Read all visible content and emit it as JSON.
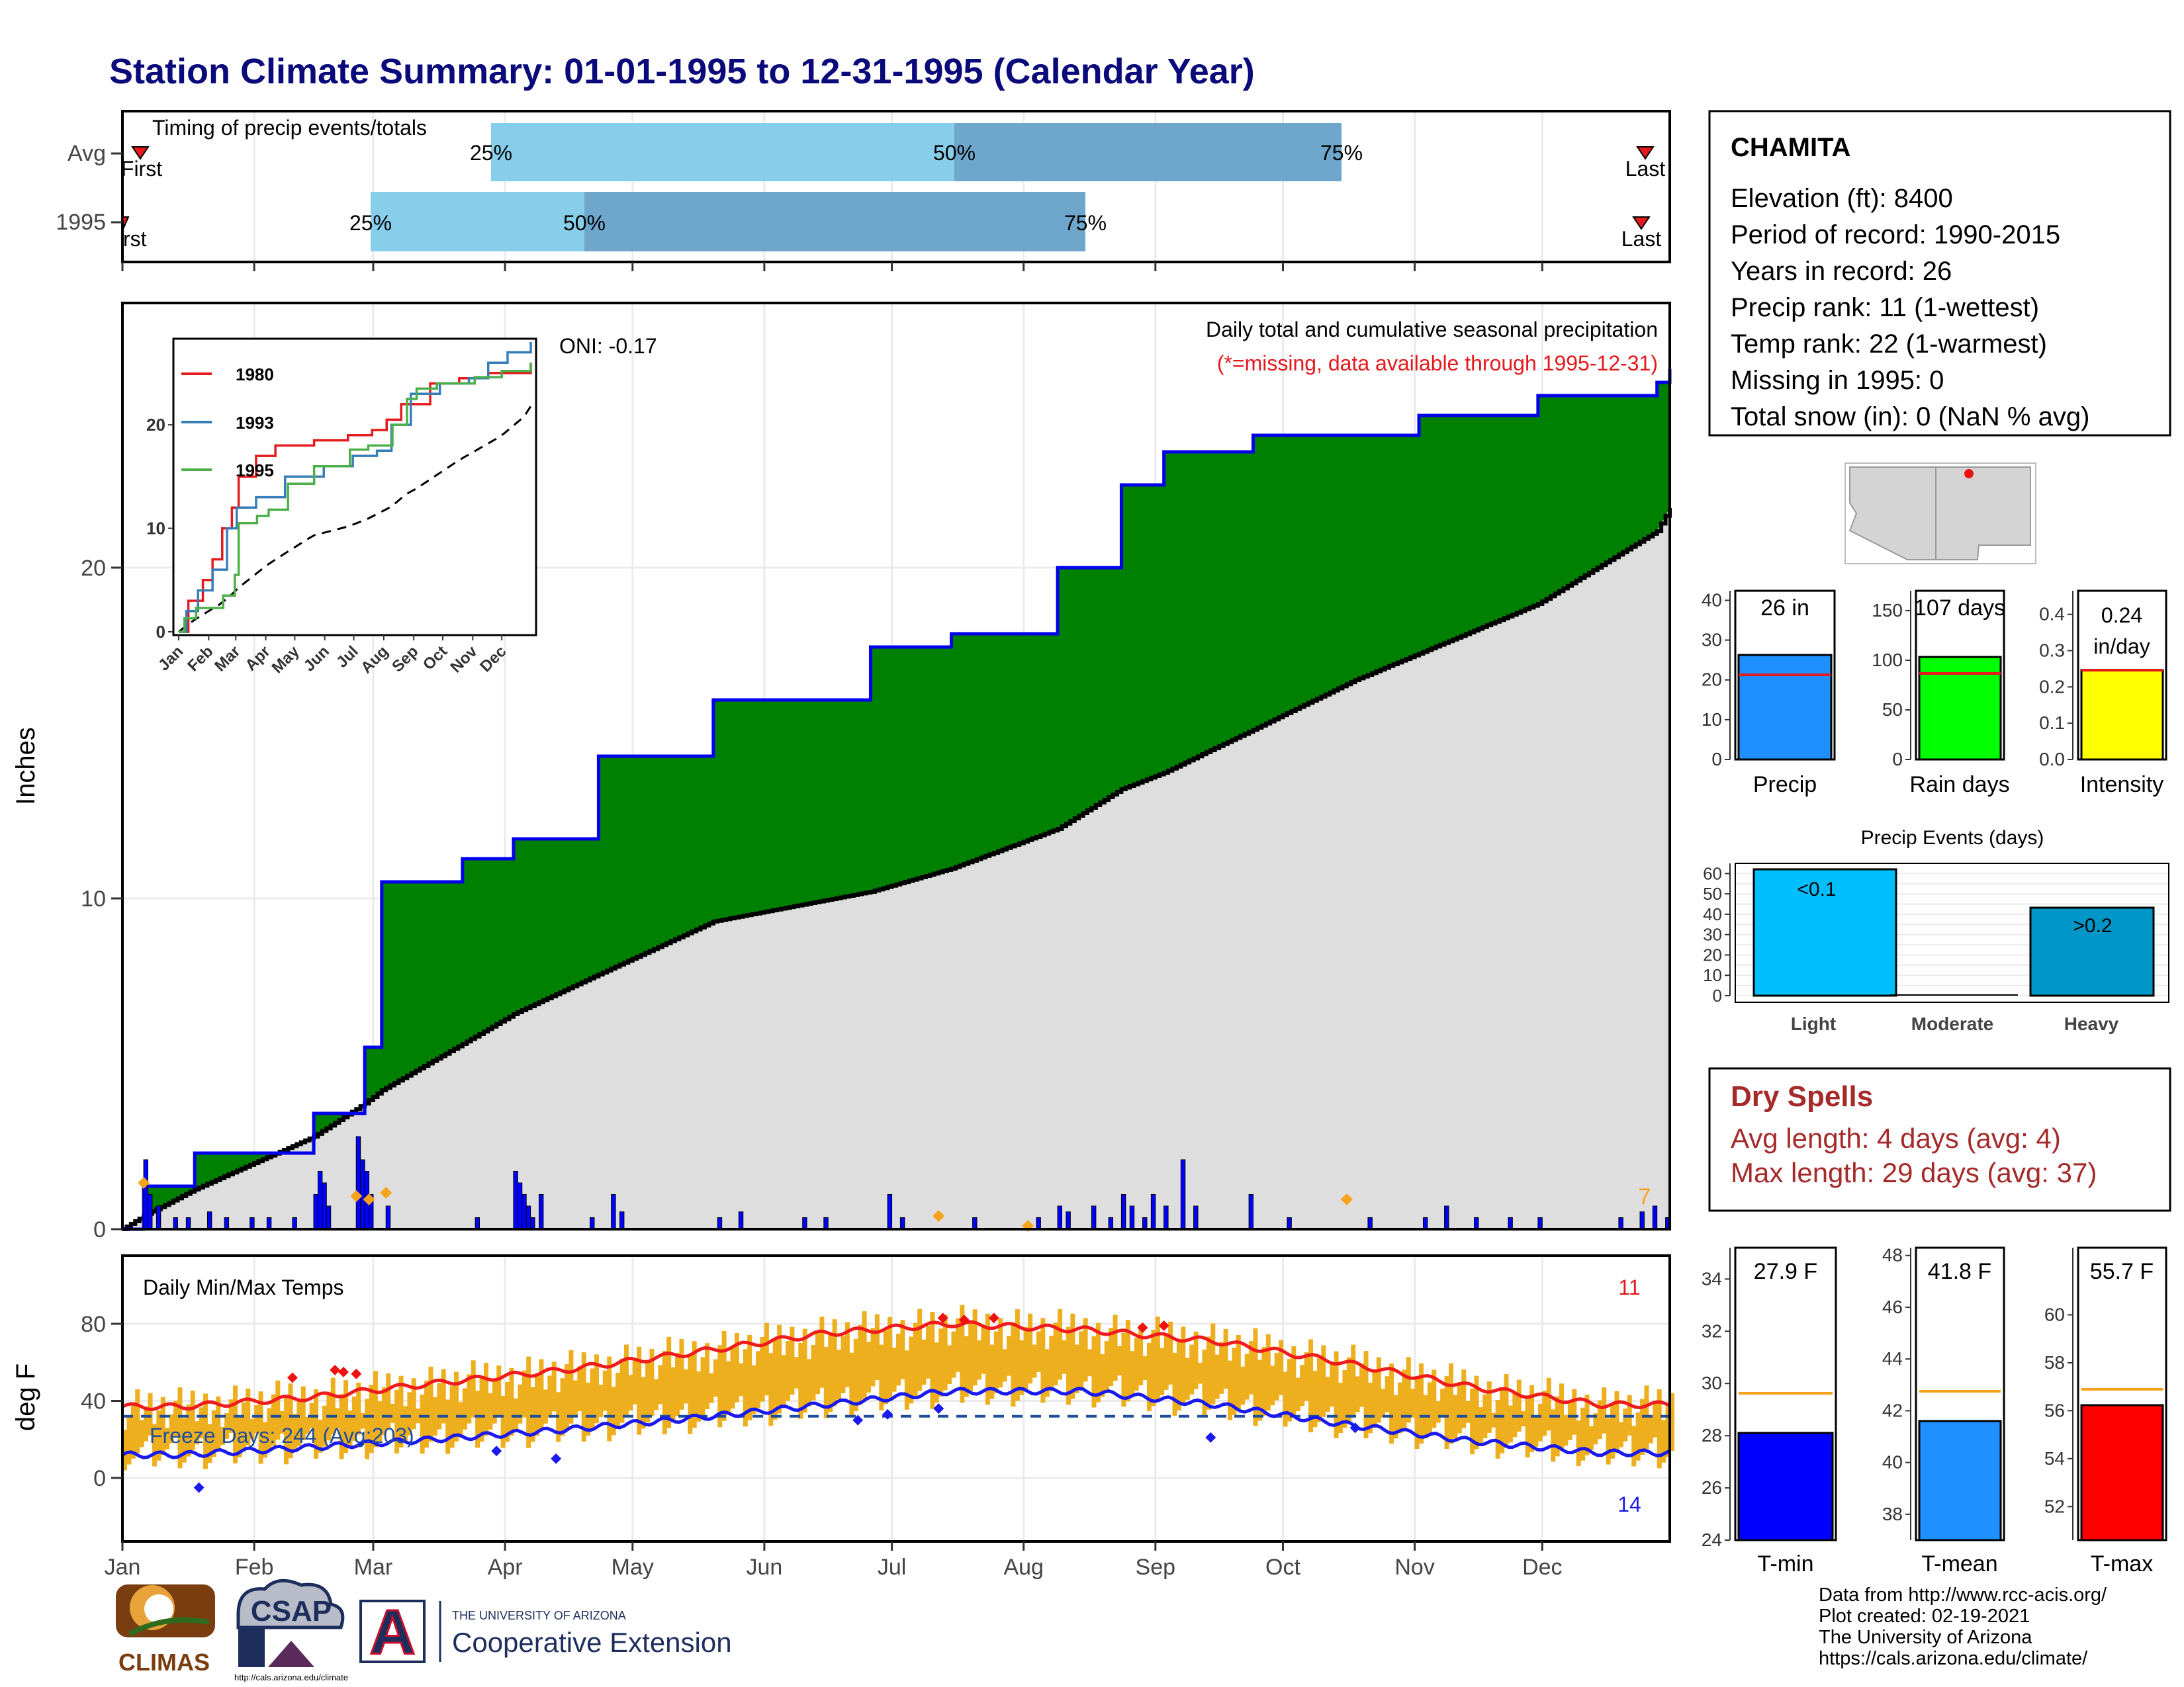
{
  "title": "Station Climate Summary: 01-01-1995 to 12-31-1995 (Calendar Year)",
  "timing": {
    "heading": "Timing of precip events/totals",
    "row_labels": [
      "Avg",
      "1995"
    ],
    "pct_labels": [
      "25%",
      "50%",
      "75%"
    ],
    "first_label": "First",
    "last_label": "Last",
    "first_label_1995": "rst"
  },
  "main_panel": {
    "ylabel": "Inches",
    "oni": "ONI: -0.17",
    "heading": "Daily total and cumulative seasonal precipitation",
    "subheading": "(*=missing, data available through 1995-12-31)",
    "corner_count": "7",
    "y_ticks": [
      "0",
      "10",
      "20"
    ]
  },
  "inset": {
    "legend": [
      "1980",
      "1993",
      "1995"
    ],
    "y_ticks": [
      "0",
      "10",
      "20"
    ],
    "x_ticks": [
      "Jan",
      "Feb",
      "Mar",
      "Apr",
      "May",
      "Jun",
      "Jul",
      "Aug",
      "Sep",
      "Oct",
      "Nov",
      "Dec"
    ]
  },
  "temp_panel": {
    "ylabel": "deg F",
    "heading": "Daily Min/Max Temps",
    "freeze": "Freeze Days: 244 (Avg:203)",
    "max_count": "11",
    "min_count": "14",
    "y_ticks": [
      "0",
      "40",
      "80"
    ]
  },
  "month_labels": [
    "Jan",
    "Feb",
    "Mar",
    "Apr",
    "May",
    "Jun",
    "Jul",
    "Aug",
    "Sep",
    "Oct",
    "Nov",
    "Dec"
  ],
  "station": {
    "name": "CHAMITA",
    "lines": [
      "Elevation (ft): 8400",
      "Period of record: 1990-2015",
      "Years in record: 26",
      "Precip rank: 11 (1-wettest)",
      "Temp rank: 22 (1-warmest)",
      "Missing in 1995: 0",
      "Total snow (in): 0 (NaN % avg)"
    ]
  },
  "bars": {
    "precip": {
      "label": "Precip",
      "value_text": "26 in",
      "ticks": [
        "0",
        "10",
        "20",
        "30",
        "40"
      ]
    },
    "raindays": {
      "label": "Rain days",
      "value_text": "107 days",
      "ticks": [
        "0",
        "50",
        "100",
        "150"
      ]
    },
    "intensity": {
      "label": "Intensity",
      "value_text_1": "0.24",
      "value_text_2": "in/day",
      "ticks": [
        "0.0",
        "0.1",
        "0.2",
        "0.3",
        "0.4"
      ]
    }
  },
  "events": {
    "title": "Precip Events (days)",
    "categories": [
      "Light",
      "Moderate",
      "Heavy"
    ],
    "bar_labels": [
      "<0.1",
      "",
      ">0.2"
    ],
    "ticks": [
      "0",
      "10",
      "20",
      "30",
      "40",
      "50",
      "60"
    ]
  },
  "dry_spells": {
    "title": "Dry Spells",
    "avg": "Avg length: 4 days (avg: 4)",
    "max": "Max length: 29 days (avg: 37)"
  },
  "temp_bars": {
    "tmin": {
      "label": "T-min",
      "value_text": "27.9 F",
      "ticks": [
        "24",
        "26",
        "28",
        "30",
        "32",
        "34"
      ]
    },
    "tmean": {
      "label": "T-mean",
      "value_text": "41.8 F",
      "ticks": [
        "38",
        "40",
        "42",
        "44",
        "46",
        "48"
      ]
    },
    "tmax": {
      "label": "T-max",
      "value_text": "55.7 F",
      "ticks": [
        "52",
        "54",
        "56",
        "58",
        "60"
      ]
    }
  },
  "footer": {
    "lines": [
      "Data from http://www.rcc-acis.org/",
      "Plot created: 02-19-2021",
      "The University of Arizona",
      "https://cals.arizona.edu/climate/"
    ],
    "logo_climas": "CLIMAS",
    "logo_csap": "CSAP",
    "logo_csap_url": "http://cals.arizona.edu/climate",
    "logo_ua_small": "THE UNIVERSITY OF ARIZONA",
    "logo_ua_big": "Cooperative Extension",
    "logo_ua_letter": "A"
  },
  "colors": {
    "title": "#0a0a7a",
    "green": "#008000",
    "cum_line": "#0000ee",
    "avg_fill": "#dedede",
    "daily_bar": "#0000ff",
    "marker": "#f7a21b",
    "temp_band": "#eeaf1f",
    "tmax_line": "#ee1c1c",
    "tmin_line": "#1a1aee",
    "dry_spells": "#a52a2a"
  },
  "chart_data": [
    {
      "type": "bar",
      "title": "Timing of precip events/totals",
      "categories": [
        "Avg",
        "1995"
      ],
      "series": [
        {
          "name": "25%",
          "values": [
            "1995-03-31",
            "1995-02-28"
          ]
        },
        {
          "name": "50%",
          "values": [
            "1995-07-18",
            "1995-04-26"
          ]
        },
        {
          "name": "75%",
          "values": [
            "1995-10-15",
            "1995-08-07"
          ]
        }
      ]
    },
    {
      "type": "area",
      "title": "Daily total and cumulative seasonal precipitation",
      "ylabel": "Inches",
      "ylim": [
        0,
        28
      ],
      "x": [
        "1995-01-01",
        "1995-01-06",
        "1995-01-18",
        "1995-02-15",
        "1995-02-27",
        "1995-03-03",
        "1995-03-22",
        "1995-04-03",
        "1995-04-23",
        "1995-05-20",
        "1995-06-26",
        "1995-07-15",
        "1995-08-09",
        "1995-08-24",
        "1995-09-03",
        "1995-09-24",
        "1995-10-18",
        "1995-11-02",
        "1995-11-30",
        "1995-12-28",
        "1995-12-31"
      ],
      "series": [
        {
          "name": "1995 cumulative",
          "values": [
            0,
            1.3,
            2.3,
            3.5,
            5.5,
            10.5,
            11.2,
            11.8,
            14.3,
            16.0,
            17.6,
            18.0,
            20.0,
            22.5,
            23.5,
            24.0,
            24.0,
            24.6,
            25.2,
            25.6,
            26.0
          ]
        },
        {
          "name": "average cumulative",
          "values": [
            0,
            0.4,
            1.2,
            2.8,
            3.8,
            4.2,
            5.6,
            6.5,
            7.7,
            9.3,
            10.2,
            10.9,
            12.1,
            13.3,
            13.8,
            15.1,
            16.6,
            17.4,
            18.9,
            21.1,
            21.8
          ]
        }
      ]
    },
    {
      "type": "line",
      "title": "Daily Min/Max Temps",
      "ylabel": "deg F",
      "x": [
        "1995-01-15",
        "1995-02-15",
        "1995-03-15",
        "1995-04-15",
        "1995-05-15",
        "1995-06-15",
        "1995-07-15",
        "1995-08-15",
        "1995-09-15",
        "1995-10-15",
        "1995-11-15",
        "1995-12-15"
      ],
      "series": [
        {
          "name": "average max",
          "values": [
            37,
            42,
            49,
            56,
            65,
            75,
            80,
            77,
            71,
            60,
            47,
            38
          ]
        },
        {
          "name": "average min",
          "values": [
            12,
            16,
            20,
            25,
            31,
            38,
            45,
            45,
            38,
            28,
            19,
            13
          ]
        }
      ]
    },
    {
      "type": "bar",
      "categories": [
        "Precip",
        "Rain days",
        "Intensity"
      ],
      "series": [
        {
          "name": "1995",
          "values": [
            26,
            107,
            0.24
          ]
        },
        {
          "name": "average",
          "values": [
            21,
            90,
            0.24
          ]
        }
      ]
    },
    {
      "type": "bar",
      "title": "Precip Events (days)",
      "categories": [
        "Light",
        "Moderate",
        "Heavy"
      ],
      "values": [
        63,
        0,
        44
      ],
      "ylim": [
        0,
        65
      ]
    },
    {
      "type": "bar",
      "categories": [
        "T-min",
        "T-mean",
        "T-max"
      ],
      "series": [
        {
          "name": "1995",
          "values": [
            27.9,
            41.8,
            55.7
          ]
        },
        {
          "name": "average",
          "values": [
            29.5,
            43.0,
            56.4
          ]
        }
      ]
    }
  ]
}
